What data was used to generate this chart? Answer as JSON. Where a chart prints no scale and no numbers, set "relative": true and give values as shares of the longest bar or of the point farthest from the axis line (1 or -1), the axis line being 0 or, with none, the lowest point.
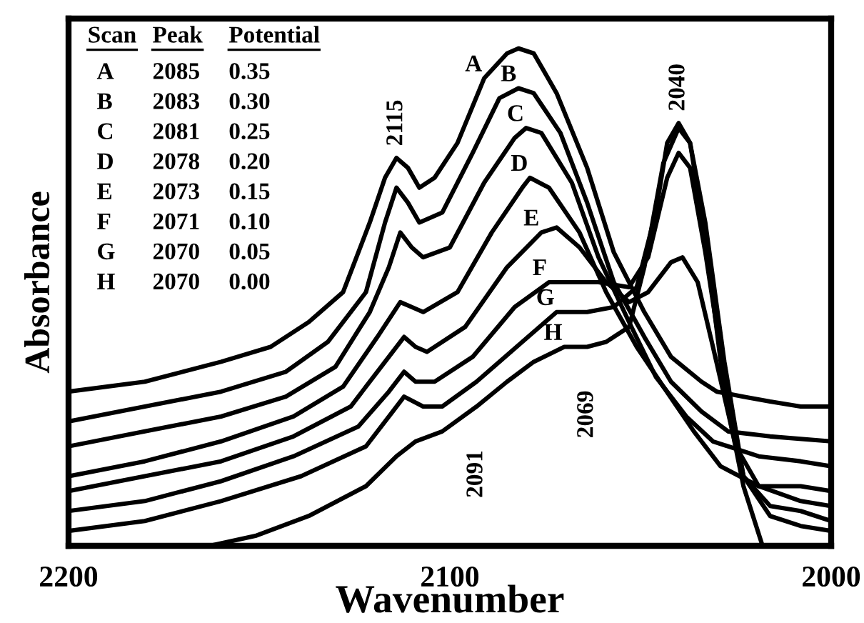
{
  "chart_data": {
    "type": "line",
    "xlabel": "Wavenumber",
    "ylabel": "Absorbance",
    "relative": true,
    "xlim": [
      2200,
      2000
    ],
    "xticks": [
      2200,
      2100,
      2000
    ],
    "tick_labels": "x",
    "grid": false,
    "legend": false,
    "marker": "none",
    "line_style": "solid",
    "series": [
      {
        "color": "#000000",
        "x": [
          2200,
          2180,
          2160,
          2147,
          2137,
          2128,
          2121,
          2117,
          2114,
          2111,
          2108,
          2104,
          2098,
          2091,
          2085,
          2082,
          2078,
          2072,
          2064,
          2057,
          2049,
          2042,
          2034,
          2030,
          2023,
          2016,
          2008,
          2000
        ],
        "values": [
          0.31,
          0.33,
          0.37,
          0.4,
          0.45,
          0.51,
          0.65,
          0.74,
          0.78,
          0.76,
          0.72,
          0.74,
          0.81,
          0.94,
          0.99,
          1.0,
          0.99,
          0.91,
          0.76,
          0.59,
          0.47,
          0.38,
          0.33,
          0.31,
          0.3,
          0.29,
          0.28,
          0.28
        ]
      },
      {
        "color": "#000000",
        "x": [
          2200,
          2180,
          2160,
          2143,
          2132,
          2122,
          2117,
          2114,
          2111,
          2108,
          2102,
          2094,
          2087,
          2082,
          2078,
          2071,
          2064,
          2057,
          2049,
          2042,
          2034,
          2027,
          2016,
          2000
        ],
        "values": [
          0.25,
          0.28,
          0.31,
          0.35,
          0.41,
          0.51,
          0.65,
          0.72,
          0.69,
          0.65,
          0.67,
          0.79,
          0.9,
          0.92,
          0.91,
          0.83,
          0.69,
          0.53,
          0.42,
          0.33,
          0.27,
          0.23,
          0.22,
          0.21
        ]
      },
      {
        "color": "#000000",
        "x": [
          2200,
          2180,
          2160,
          2143,
          2130,
          2121,
          2116,
          2113,
          2110,
          2107,
          2100,
          2091,
          2083,
          2080,
          2076,
          2068,
          2061,
          2053,
          2046,
          2038,
          2031,
          2019,
          2008,
          2000
        ],
        "values": [
          0.2,
          0.23,
          0.26,
          0.3,
          0.36,
          0.47,
          0.56,
          0.63,
          0.6,
          0.58,
          0.6,
          0.73,
          0.82,
          0.84,
          0.83,
          0.73,
          0.58,
          0.45,
          0.34,
          0.26,
          0.21,
          0.18,
          0.17,
          0.16
        ]
      },
      {
        "color": "#000000",
        "x": [
          2200,
          2180,
          2160,
          2141,
          2128,
          2119,
          2113,
          2110,
          2107,
          2098,
          2089,
          2081,
          2079,
          2074,
          2066,
          2059,
          2051,
          2044,
          2036,
          2029,
          2019,
          2008,
          2000
        ],
        "values": [
          0.14,
          0.17,
          0.21,
          0.26,
          0.32,
          0.42,
          0.49,
          0.48,
          0.47,
          0.51,
          0.63,
          0.72,
          0.74,
          0.72,
          0.63,
          0.51,
          0.4,
          0.32,
          0.23,
          0.16,
          0.12,
          0.12,
          0.11
        ]
      },
      {
        "color": "#000000",
        "x": [
          2200,
          2180,
          2160,
          2141,
          2126,
          2117,
          2112,
          2109,
          2106,
          2096,
          2085,
          2076,
          2072,
          2066,
          2059,
          2053,
          2048,
          2042,
          2039,
          2035,
          2031,
          2025,
          2019,
          2008,
          2000
        ],
        "values": [
          0.11,
          0.14,
          0.17,
          0.22,
          0.28,
          0.37,
          0.42,
          0.4,
          0.39,
          0.44,
          0.56,
          0.63,
          0.64,
          0.6,
          0.53,
          0.49,
          0.51,
          0.57,
          0.58,
          0.53,
          0.4,
          0.2,
          0.12,
          0.09,
          0.08
        ]
      },
      {
        "color": "#000000",
        "x": [
          2200,
          2180,
          2160,
          2141,
          2124,
          2116,
          2112,
          2109,
          2104,
          2094,
          2083,
          2074,
          2068,
          2061,
          2053,
          2048,
          2043,
          2040,
          2037,
          2033,
          2028,
          2023,
          2016,
          2008,
          2000
        ],
        "values": [
          0.07,
          0.09,
          0.13,
          0.18,
          0.24,
          0.31,
          0.35,
          0.33,
          0.33,
          0.38,
          0.48,
          0.53,
          0.53,
          0.53,
          0.52,
          0.58,
          0.74,
          0.79,
          0.76,
          0.59,
          0.34,
          0.14,
          0.08,
          0.07,
          0.05
        ]
      },
      {
        "color": "#000000",
        "x": [
          2200,
          2180,
          2160,
          2139,
          2122,
          2115,
          2112,
          2107,
          2102,
          2093,
          2081,
          2072,
          2064,
          2057,
          2051,
          2046,
          2043,
          2040,
          2037,
          2033,
          2028,
          2023,
          2016,
          2008,
          2000
        ],
        "values": [
          0.03,
          0.05,
          0.09,
          0.14,
          0.2,
          0.27,
          0.3,
          0.28,
          0.28,
          0.33,
          0.41,
          0.47,
          0.47,
          0.48,
          0.52,
          0.67,
          0.81,
          0.85,
          0.81,
          0.65,
          0.37,
          0.14,
          0.06,
          0.04,
          0.03
        ]
      },
      {
        "color": "#000000",
        "x": [
          2163,
          2151,
          2137,
          2122,
          2114,
          2109,
          2102,
          2093,
          2085,
          2078,
          2070,
          2064,
          2059,
          2053,
          2049,
          2044,
          2040,
          2037,
          2033,
          2028,
          2023,
          2018,
          2000
        ],
        "values": [
          0.0,
          0.02,
          0.06,
          0.12,
          0.18,
          0.21,
          0.23,
          0.28,
          0.33,
          0.37,
          0.4,
          0.4,
          0.41,
          0.44,
          0.56,
          0.77,
          0.84,
          0.81,
          0.62,
          0.31,
          0.12,
          0.0,
          0.0
        ]
      }
    ],
    "annotations": [
      {
        "text": "A",
        "x": 2091,
        "y": 0.94
      },
      {
        "text": "B",
        "x": 2082,
        "y": 0.92
      },
      {
        "text": "C",
        "x": 2080,
        "y": 0.84
      },
      {
        "text": "D",
        "x": 2079,
        "y": 0.74
      },
      {
        "text": "E",
        "x": 2076,
        "y": 0.63
      },
      {
        "text": "F",
        "x": 2074,
        "y": 0.53
      },
      {
        "text": "G",
        "x": 2072,
        "y": 0.47
      },
      {
        "text": "H",
        "x": 2070,
        "y": 0.4
      },
      {
        "text": "2115",
        "x": 2114,
        "y": 0.78
      },
      {
        "text": "2040",
        "x": 2040,
        "y": 0.85
      },
      {
        "text": "2091",
        "x": 2093,
        "y": 0.28
      },
      {
        "text": "2069",
        "x": 2064,
        "y": 0.4
      },
      "Scan Peak Potential",
      "A 2085 0.35",
      "B 2083 0.30",
      "C 2081 0.25",
      "D 2078 0.20",
      "E 2073 0.15",
      "F 2071 0.10",
      "G 2070 0.05",
      "H 2070 0.00"
    ]
  }
}
